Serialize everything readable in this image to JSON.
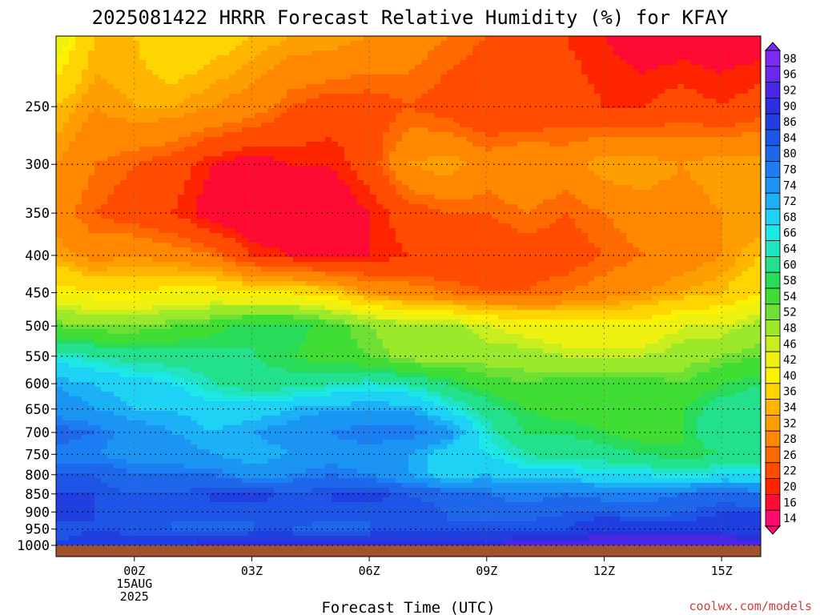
{
  "chart_data": {
    "type": "heatmap",
    "title": "2025081422 HRRR Forecast Relative Humidity (%) for KFAY",
    "xlabel": "Forecast Time (UTC)",
    "ylabel": "",
    "credit": "coolwx.com/models",
    "x_ticks": [
      {
        "hour": 0,
        "label": "00Z",
        "sub1": "15AUG",
        "sub2": "2025"
      },
      {
        "hour": 3,
        "label": "03Z",
        "sub1": "",
        "sub2": ""
      },
      {
        "hour": 6,
        "label": "06Z",
        "sub1": "",
        "sub2": ""
      },
      {
        "hour": 9,
        "label": "09Z",
        "sub1": "",
        "sub2": ""
      },
      {
        "hour": 12,
        "label": "12Z",
        "sub1": "",
        "sub2": ""
      },
      {
        "hour": 15,
        "label": "15Z",
        "sub1": "",
        "sub2": ""
      }
    ],
    "xlim": [
      -2,
      16
    ],
    "y_ticks": [
      250,
      300,
      350,
      400,
      450,
      500,
      550,
      600,
      650,
      700,
      750,
      800,
      850,
      900,
      950,
      1000
    ],
    "ylim": [
      200,
      1000
    ],
    "y_scale": "log",
    "grid": true,
    "hours": [
      -2,
      -1,
      0,
      1,
      2,
      3,
      4,
      5,
      6,
      7,
      8,
      9,
      10,
      11,
      12,
      13,
      14,
      15,
      16
    ],
    "levels": [
      200,
      250,
      300,
      350,
      400,
      450,
      500,
      550,
      600,
      650,
      700,
      750,
      800,
      850,
      900,
      950,
      1000
    ],
    "rh": [
      [
        45,
        36,
        36,
        40,
        38,
        36,
        34,
        34,
        32,
        30,
        28,
        26,
        24,
        22,
        20,
        18,
        18,
        18,
        18
      ],
      [
        36,
        32,
        34,
        34,
        32,
        30,
        26,
        24,
        24,
        26,
        24,
        22,
        22,
        24,
        22,
        22,
        24,
        22,
        24
      ],
      [
        32,
        28,
        26,
        24,
        20,
        18,
        20,
        20,
        24,
        32,
        34,
        30,
        32,
        30,
        34,
        34,
        32,
        34,
        34
      ],
      [
        30,
        26,
        24,
        22,
        18,
        16,
        16,
        16,
        20,
        24,
        26,
        26,
        28,
        26,
        28,
        30,
        30,
        32,
        32
      ],
      [
        34,
        30,
        32,
        30,
        28,
        22,
        20,
        18,
        20,
        22,
        22,
        22,
        24,
        24,
        26,
        28,
        30,
        32,
        36
      ],
      [
        42,
        40,
        40,
        42,
        42,
        40,
        40,
        38,
        32,
        30,
        28,
        26,
        26,
        28,
        30,
        32,
        34,
        36,
        40
      ],
      [
        54,
        52,
        52,
        54,
        56,
        60,
        60,
        56,
        52,
        50,
        50,
        46,
        44,
        42,
        42,
        42,
        46,
        46,
        50
      ],
      [
        66,
        64,
        62,
        62,
        62,
        60,
        58,
        56,
        54,
        50,
        50,
        50,
        50,
        48,
        48,
        48,
        50,
        52,
        54
      ],
      [
        74,
        72,
        70,
        68,
        64,
        62,
        62,
        64,
        66,
        64,
        60,
        56,
        54,
        56,
        56,
        56,
        54,
        58,
        60
      ],
      [
        76,
        74,
        72,
        72,
        70,
        70,
        72,
        74,
        74,
        74,
        68,
        62,
        58,
        56,
        56,
        56,
        58,
        62,
        62
      ],
      [
        82,
        80,
        76,
        74,
        72,
        74,
        76,
        78,
        80,
        80,
        76,
        66,
        60,
        60,
        58,
        56,
        58,
        64,
        62
      ],
      [
        78,
        78,
        76,
        76,
        74,
        72,
        74,
        76,
        76,
        74,
        70,
        68,
        64,
        62,
        62,
        60,
        58,
        60,
        62
      ],
      [
        84,
        84,
        80,
        80,
        80,
        76,
        78,
        80,
        78,
        74,
        70,
        72,
        70,
        70,
        68,
        68,
        66,
        68,
        68
      ],
      [
        86,
        86,
        84,
        84,
        86,
        88,
        84,
        86,
        88,
        84,
        82,
        80,
        78,
        80,
        78,
        78,
        80,
        82,
        80
      ],
      [
        88,
        86,
        84,
        84,
        86,
        84,
        86,
        86,
        84,
        86,
        84,
        82,
        82,
        84,
        84,
        82,
        84,
        86,
        86
      ],
      [
        84,
        86,
        84,
        84,
        82,
        84,
        84,
        82,
        84,
        84,
        84,
        86,
        86,
        86,
        90,
        90,
        88,
        88,
        88
      ],
      [
        86,
        90,
        90,
        90,
        92,
        92,
        92,
        92,
        92,
        92,
        92,
        92,
        94,
        94,
        96,
        96,
        96,
        96,
        94
      ]
    ],
    "colorbar": {
      "labels": [
        "98",
        "96",
        "92",
        "90",
        "86",
        "84",
        "80",
        "78",
        "74",
        "72",
        "68",
        "66",
        "64",
        "60",
        "58",
        "54",
        "52",
        "48",
        "46",
        "42",
        "40",
        "36",
        "34",
        "32",
        "28",
        "26",
        "22",
        "20",
        "16",
        "14"
      ],
      "colors": [
        "#7e29f2",
        "#6a28ee",
        "#4a26e6",
        "#2c2fe0",
        "#1f3fe0",
        "#1e55e6",
        "#1f67ea",
        "#1c7ef2",
        "#1a95f4",
        "#1cb0f6",
        "#1ed2f6",
        "#1de8e8",
        "#20e4c0",
        "#22e08c",
        "#28dc5a",
        "#40de34",
        "#6ee034",
        "#9ce82a",
        "#c8ee20",
        "#eef010",
        "#fff200",
        "#ffd400",
        "#ffb400",
        "#ff9e00",
        "#ff8800",
        "#ff6a00",
        "#ff4c00",
        "#ff2400",
        "#ff0a32",
        "#ff0a70"
      ]
    },
    "ground_color": "#a0522d"
  }
}
